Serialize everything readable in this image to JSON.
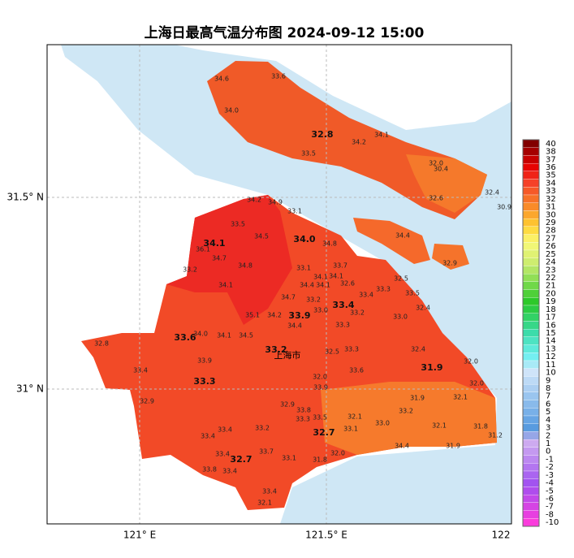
{
  "header": {
    "title": "上海日最高气温分布图 2024-09-12 15:00"
  },
  "axes": {
    "x_labels": [
      "121° E",
      "121.5° E",
      "122"
    ],
    "y_labels": [
      "31.5° N",
      "31° N"
    ]
  },
  "city_label": "上海市",
  "district_values": [
    "32.8",
    "34.1",
    "34.0",
    "33.6",
    "33.9",
    "33.4",
    "33.2",
    "33.3",
    "31.9",
    "32.7",
    "32.7"
  ],
  "station_values": [
    "34.6",
    "33.6",
    "34.0",
    "34.1",
    "34.2",
    "33.5",
    "32.0",
    "30.4",
    "32.6",
    "32.4",
    "30.9",
    "34.2",
    "34.9",
    "33.1",
    "33.5",
    "34.5",
    "34.8",
    "34.4",
    "36.1",
    "34.7",
    "34.8",
    "33.2",
    "32.9",
    "33.1",
    "33.7",
    "34.1",
    "34.1",
    "34.4",
    "34.1",
    "32.6",
    "32.5",
    "33.3",
    "33.4",
    "33.5",
    "34.1",
    "34.7",
    "33.2",
    "33.0",
    "33.2",
    "32.4",
    "35.1",
    "34.2",
    "33.0",
    "34.4",
    "33.3",
    "34.0",
    "34.1",
    "34.5",
    "32.8",
    "32.5",
    "33.3",
    "32.4",
    "33.9",
    "32.0",
    "33.4",
    "33.6",
    "32.0",
    "32.0",
    "33.9",
    "31.9",
    "32.1",
    "32.9",
    "32.9",
    "33.8",
    "32.1",
    "33.2",
    "33.3",
    "33.5",
    "33.0",
    "32.1",
    "31.8",
    "33.4",
    "33.2",
    "33.1",
    "31.2",
    "33.4",
    "33.7",
    "33.4",
    "34.4",
    "31.9",
    "32.0",
    "33.1",
    "31.8",
    "33.8",
    "33.4",
    "33.4",
    "32.1"
  ],
  "colorbar": {
    "labels": [
      "40",
      "38",
      "37",
      "36",
      "35",
      "34",
      "33",
      "32",
      "31",
      "30",
      "29",
      "28",
      "27",
      "26",
      "25",
      "24",
      "23",
      "22",
      "21",
      "20",
      "19",
      "18",
      "17",
      "16",
      "15",
      "14",
      "13",
      "12",
      "11",
      "10",
      "9",
      "8",
      "7",
      "6",
      "5",
      "4",
      "3",
      "2",
      "1",
      "0",
      "-1",
      "-2",
      "-3",
      "-4",
      "-5",
      "-6",
      "-7",
      "-8",
      "-10"
    ]
  }
}
